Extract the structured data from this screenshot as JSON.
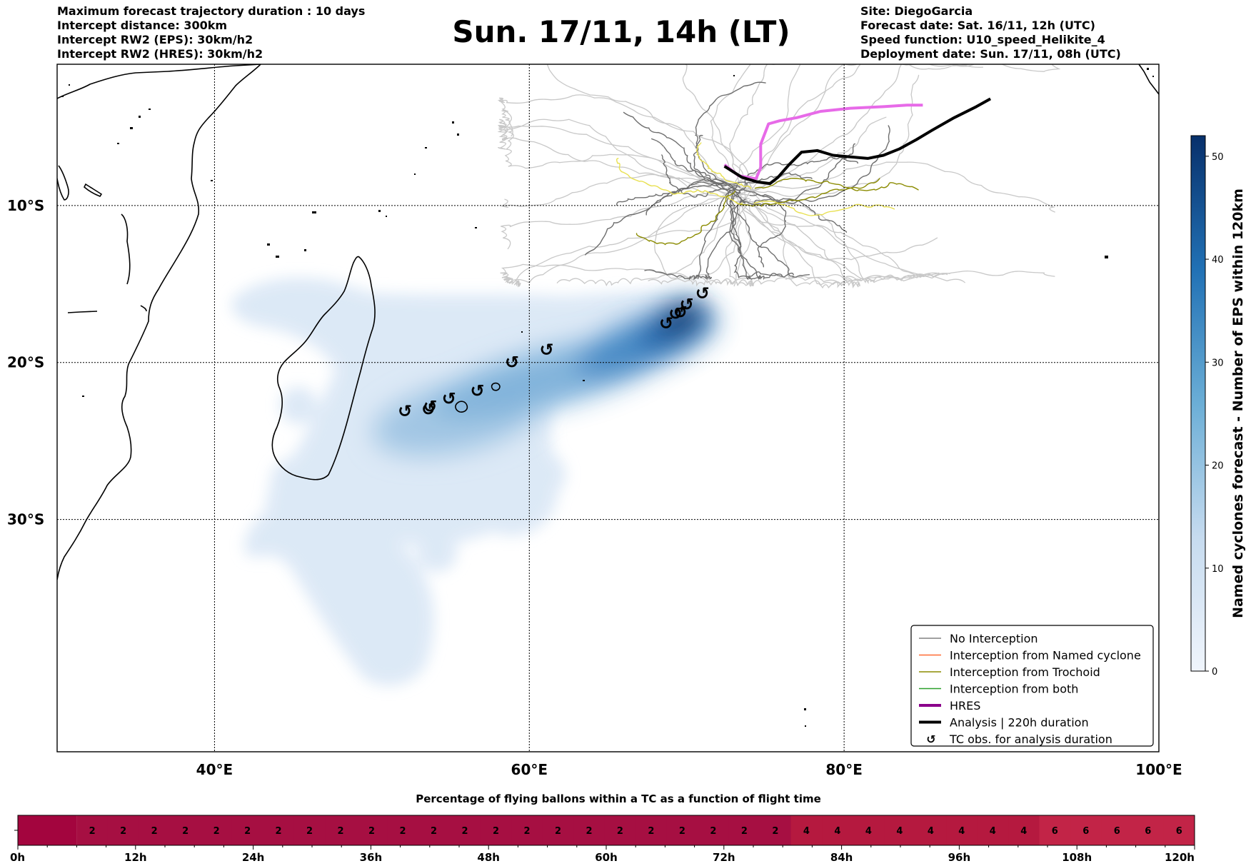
{
  "header": {
    "left_lines": [
      "Maximum forecast trajectory duration : 10 days",
      "Intercept distance: 300km",
      "Intercept RW2 (EPS):  30km/h2",
      "Intercept RW2 (HRES): 30km/h2"
    ],
    "title": "Sun. 17/11, 14h (LT)",
    "right_lines": [
      "Site: DiegoGarcia",
      "Forecast date: Sat. 16/11, 12h (UTC)",
      "Speed function: U10_speed_Helikite_4",
      "Deployment date: Sun. 17/11, 08h (UTC)"
    ]
  },
  "map": {
    "lon_labels": [
      "40°E",
      "60°E",
      "80°E",
      "100°E"
    ],
    "lat_labels": [
      "10°S",
      "20°S",
      "30°S"
    ],
    "lon_ticks": [
      40,
      60,
      80,
      100
    ],
    "lat_ticks": [
      -10,
      -20,
      -30
    ],
    "lon_range": [
      30,
      100
    ],
    "lat_range": [
      -1,
      -44.8
    ],
    "tc_observations": [
      {
        "lon": 71.0,
        "lat": -15.6
      },
      {
        "lon": 70.0,
        "lat": -16.3
      },
      {
        "lon": 69.6,
        "lat": -16.8
      },
      {
        "lon": 69.3,
        "lat": -16.9
      },
      {
        "lon": 68.7,
        "lat": -17.5
      },
      {
        "lon": 61.1,
        "lat": -19.2
      },
      {
        "lon": 58.9,
        "lat": -20.0
      },
      {
        "lon": 56.7,
        "lat": -21.8
      },
      {
        "lon": 54.9,
        "lat": -22.3
      },
      {
        "lon": 53.7,
        "lat": -22.8
      },
      {
        "lon": 53.6,
        "lat": -23.0
      },
      {
        "lon": 52.1,
        "lat": -23.1
      }
    ],
    "analysis_track": [
      [
        72.4,
        -7.5
      ],
      [
        73.5,
        -8.2
      ],
      [
        74.5,
        -8.5
      ],
      [
        75.3,
        -8.6
      ],
      [
        75.8,
        -8.2
      ],
      [
        76.5,
        -7.4
      ],
      [
        77.3,
        -6.6
      ],
      [
        78.3,
        -6.5
      ],
      [
        79.3,
        -6.8
      ],
      [
        80.4,
        -6.9
      ],
      [
        81.5,
        -7.0
      ],
      [
        82.5,
        -6.8
      ],
      [
        83.5,
        -6.4
      ],
      [
        84.6,
        -5.8
      ],
      [
        85.6,
        -5.2
      ],
      [
        87.0,
        -4.4
      ],
      [
        88.4,
        -3.7
      ],
      [
        89.3,
        -3.2
      ]
    ],
    "hres_track": [
      [
        72.4,
        -7.4
      ],
      [
        73.3,
        -8.1
      ],
      [
        74.4,
        -8.3
      ],
      [
        74.7,
        -7.6
      ],
      [
        74.7,
        -6.1
      ],
      [
        75.2,
        -4.8
      ],
      [
        75.9,
        -4.6
      ],
      [
        77.0,
        -4.4
      ],
      [
        78.5,
        -4.0
      ],
      [
        80.4,
        -3.8
      ],
      [
        82.5,
        -3.7
      ],
      [
        84.0,
        -3.6
      ],
      [
        85.0,
        -3.6
      ]
    ],
    "named_cyclone_density": [
      {
        "lon": 70.0,
        "lat": -16.5,
        "level": 50
      },
      {
        "lon": 65.5,
        "lat": -18.2,
        "level": 38
      },
      {
        "lon": 61.0,
        "lat": -19.6,
        "level": 28
      },
      {
        "lon": 56.5,
        "lat": -21.5,
        "level": 22
      },
      {
        "lon": 53.5,
        "lat": -22.8,
        "level": 18
      },
      {
        "lon": 50.0,
        "lat": -18.5,
        "level": 3
      },
      {
        "lon": 48.5,
        "lat": -26.5,
        "level": 2
      },
      {
        "lon": 51.0,
        "lat": -32.0,
        "level": 2
      },
      {
        "lon": 52.0,
        "lat": -37.0,
        "level": 2
      }
    ]
  },
  "legend": {
    "items": [
      {
        "label": "No Interception",
        "color": "#808080",
        "kind": "thin"
      },
      {
        "label": "Interception from Named cyclone",
        "color": "#ff6a33",
        "kind": "thin"
      },
      {
        "label": "Interception from Trochoid",
        "color": "#8b8b00",
        "kind": "thin"
      },
      {
        "label": "Interception from both",
        "color": "#2ca02c",
        "kind": "thin"
      },
      {
        "label": "HRES",
        "color": "#8b008b",
        "kind": "thick"
      },
      {
        "label": "Analysis | 220h duration",
        "color": "#000000",
        "kind": "thick"
      },
      {
        "label": "TC obs. for analysis duration",
        "color": "#000000",
        "kind": "symbol"
      }
    ]
  },
  "colorbar": {
    "label": "Named cyclones forecast - Number of EPS within 120km",
    "ticks": [
      0,
      10,
      20,
      30,
      40,
      50
    ],
    "max": 52,
    "color_low": "#f0f5fc",
    "color_high": "#08306b"
  },
  "timeline": {
    "title": "Percentage of flying ballons within a TC as a function of flight time",
    "tick_labels": [
      "0h",
      "12h",
      "24h",
      "36h",
      "48h",
      "60h",
      "72h",
      "84h",
      "96h",
      "108h",
      "120h"
    ],
    "total_hours": 120,
    "cells": [
      {
        "hours": 6,
        "value": ""
      },
      {
        "hours": 66,
        "value": "2"
      },
      {
        "hours": 27,
        "value": "4"
      },
      {
        "hours": 15,
        "value": "6"
      }
    ],
    "cell_values": [
      "2",
      "2",
      "2",
      "2",
      "2",
      "2",
      "2",
      "2",
      "2",
      "2",
      "2",
      "2",
      "2",
      "2",
      "2",
      "2",
      "2",
      "2",
      "2",
      "2",
      "2",
      "2",
      "2",
      "4",
      "4",
      "4",
      "4",
      "4",
      "4",
      "4",
      "4",
      "6",
      "6",
      "6",
      "6",
      "6"
    ],
    "colors": {
      "0": "#a3053e",
      "2": "#a60f42",
      "4": "#b5193f",
      "6": "#c22447"
    }
  }
}
